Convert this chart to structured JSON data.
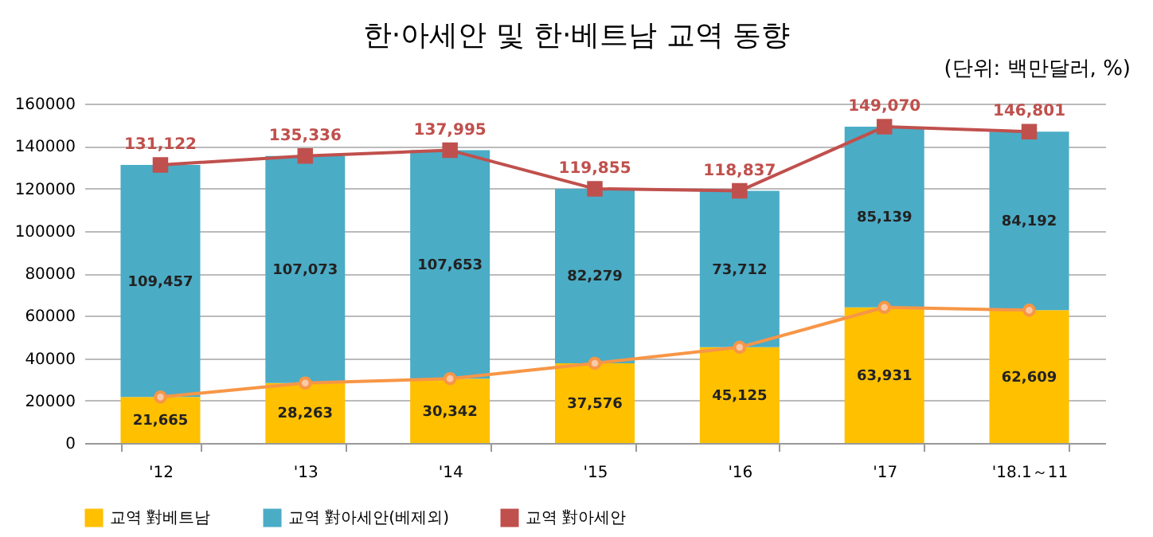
{
  "chart_data": {
    "type": "bar",
    "title": "한·아세안 및 한·베트남 교역 동향",
    "subtitle": "(단위: 백만달러, %)",
    "categories": [
      "'12",
      "'13",
      "'14",
      "'15",
      "'16",
      "'17",
      "'18.1～11"
    ],
    "stacked": true,
    "grid": "y",
    "legend": "bottom",
    "ylim": [
      0,
      160000
    ],
    "yticks": [
      0,
      20000,
      40000,
      60000,
      80000,
      100000,
      120000,
      140000,
      160000
    ],
    "series": [
      {
        "name": "교역 對베트남",
        "color": "#ffc000",
        "values": [
          21665,
          28263,
          30342,
          37576,
          45125,
          63931,
          62609
        ],
        "value_labels": [
          "21,665",
          "28,263",
          "30,342",
          "37,576",
          "45,125",
          "63,931",
          "62,609"
        ]
      },
      {
        "name": "교역 對아세안(베제외)",
        "color": "#4bacc6",
        "values": [
          109457,
          107073,
          107653,
          82279,
          73712,
          85139,
          84192
        ],
        "value_labels": [
          "109,457",
          "107,073",
          "107,653",
          "82,279",
          "73,712",
          "85,139",
          "84,192"
        ]
      },
      {
        "name": "교역 對아세안",
        "type": "line",
        "marker": "square",
        "color": "#c0504d",
        "values": [
          131122,
          135336,
          137995,
          119855,
          118837,
          149070,
          146801
        ],
        "value_labels": [
          "131,122",
          "135,336",
          "137,995",
          "119,855",
          "118,837",
          "149,070",
          "146,801"
        ]
      },
      {
        "type": "line",
        "marker": "circle",
        "color": "#f79646",
        "values": [
          21665,
          28263,
          30342,
          37576,
          45125,
          63931,
          62609
        ]
      }
    ]
  }
}
